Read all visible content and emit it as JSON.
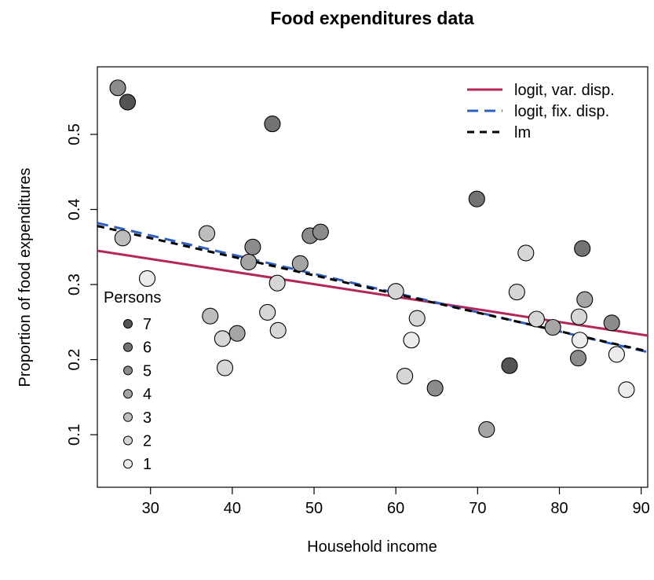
{
  "chart_data": {
    "type": "scatter",
    "title": "Food expenditures data",
    "xlabel": "Household income",
    "ylabel": "Proportion of food expenditures",
    "xlim": [
      23.5,
      90.8
    ],
    "ylim": [
      0.03,
      0.59
    ],
    "x_ticks": [
      30,
      40,
      50,
      60,
      70,
      80,
      90
    ],
    "y_ticks": [
      0.1,
      0.2,
      0.3,
      0.4,
      0.5
    ],
    "grid": false,
    "legend_position": "top-right",
    "size_legend_title": "Persons",
    "size_legend": [
      {
        "label": "7",
        "value": 7
      },
      {
        "label": "6",
        "value": 6
      },
      {
        "label": "5",
        "value": 5
      },
      {
        "label": "4",
        "value": 4
      },
      {
        "label": "3",
        "value": 3
      },
      {
        "label": "2",
        "value": 2
      },
      {
        "label": "1",
        "value": 1
      }
    ],
    "points": [
      {
        "x": 26.0,
        "y": 0.562,
        "persons": 5
      },
      {
        "x": 27.2,
        "y": 0.543,
        "persons": 7
      },
      {
        "x": 26.6,
        "y": 0.362,
        "persons": 3
      },
      {
        "x": 29.6,
        "y": 0.308,
        "persons": 1
      },
      {
        "x": 36.9,
        "y": 0.368,
        "persons": 3
      },
      {
        "x": 37.3,
        "y": 0.258,
        "persons": 3
      },
      {
        "x": 38.8,
        "y": 0.228,
        "persons": 2
      },
      {
        "x": 39.1,
        "y": 0.189,
        "persons": 2
      },
      {
        "x": 40.6,
        "y": 0.235,
        "persons": 4
      },
      {
        "x": 42.0,
        "y": 0.33,
        "persons": 4
      },
      {
        "x": 42.5,
        "y": 0.35,
        "persons": 5
      },
      {
        "x": 44.3,
        "y": 0.263,
        "persons": 2
      },
      {
        "x": 44.9,
        "y": 0.514,
        "persons": 6
      },
      {
        "x": 45.5,
        "y": 0.302,
        "persons": 2
      },
      {
        "x": 45.6,
        "y": 0.239,
        "persons": 2
      },
      {
        "x": 48.3,
        "y": 0.328,
        "persons": 4
      },
      {
        "x": 49.5,
        "y": 0.365,
        "persons": 5
      },
      {
        "x": 50.8,
        "y": 0.37,
        "persons": 5
      },
      {
        "x": 60.0,
        "y": 0.291,
        "persons": 2
      },
      {
        "x": 61.1,
        "y": 0.178,
        "persons": 2
      },
      {
        "x": 61.9,
        "y": 0.226,
        "persons": 1
      },
      {
        "x": 62.6,
        "y": 0.255,
        "persons": 2
      },
      {
        "x": 64.8,
        "y": 0.162,
        "persons": 5
      },
      {
        "x": 69.9,
        "y": 0.414,
        "persons": 6
      },
      {
        "x": 71.1,
        "y": 0.107,
        "persons": 4
      },
      {
        "x": 73.9,
        "y": 0.192,
        "persons": 7
      },
      {
        "x": 74.8,
        "y": 0.29,
        "persons": 2
      },
      {
        "x": 75.9,
        "y": 0.342,
        "persons": 2
      },
      {
        "x": 77.2,
        "y": 0.254,
        "persons": 2
      },
      {
        "x": 79.2,
        "y": 0.243,
        "persons": 4
      },
      {
        "x": 82.3,
        "y": 0.202,
        "persons": 5
      },
      {
        "x": 82.4,
        "y": 0.257,
        "persons": 2
      },
      {
        "x": 82.5,
        "y": 0.226,
        "persons": 1
      },
      {
        "x": 82.8,
        "y": 0.348,
        "persons": 6
      },
      {
        "x": 83.1,
        "y": 0.28,
        "persons": 4
      },
      {
        "x": 86.4,
        "y": 0.249,
        "persons": 5
      },
      {
        "x": 87.0,
        "y": 0.207,
        "persons": 1
      },
      {
        "x": 88.2,
        "y": 0.16,
        "persons": 1
      }
    ],
    "series": [
      {
        "name": "logit, var. disp.",
        "style": "solid",
        "color": "#b5255a",
        "x": [
          23.5,
          90.8
        ],
        "y": [
          0.345,
          0.232
        ]
      },
      {
        "name": "logit, fix. disp.",
        "style": "dashed",
        "color": "#2f5fbf",
        "x": [
          23.5,
          90.8
        ],
        "y": [
          0.382,
          0.21
        ]
      },
      {
        "name": "lm",
        "style": "dashed",
        "color": "#000000",
        "x": [
          23.5,
          90.8
        ],
        "y": [
          0.378,
          0.211
        ]
      }
    ]
  }
}
